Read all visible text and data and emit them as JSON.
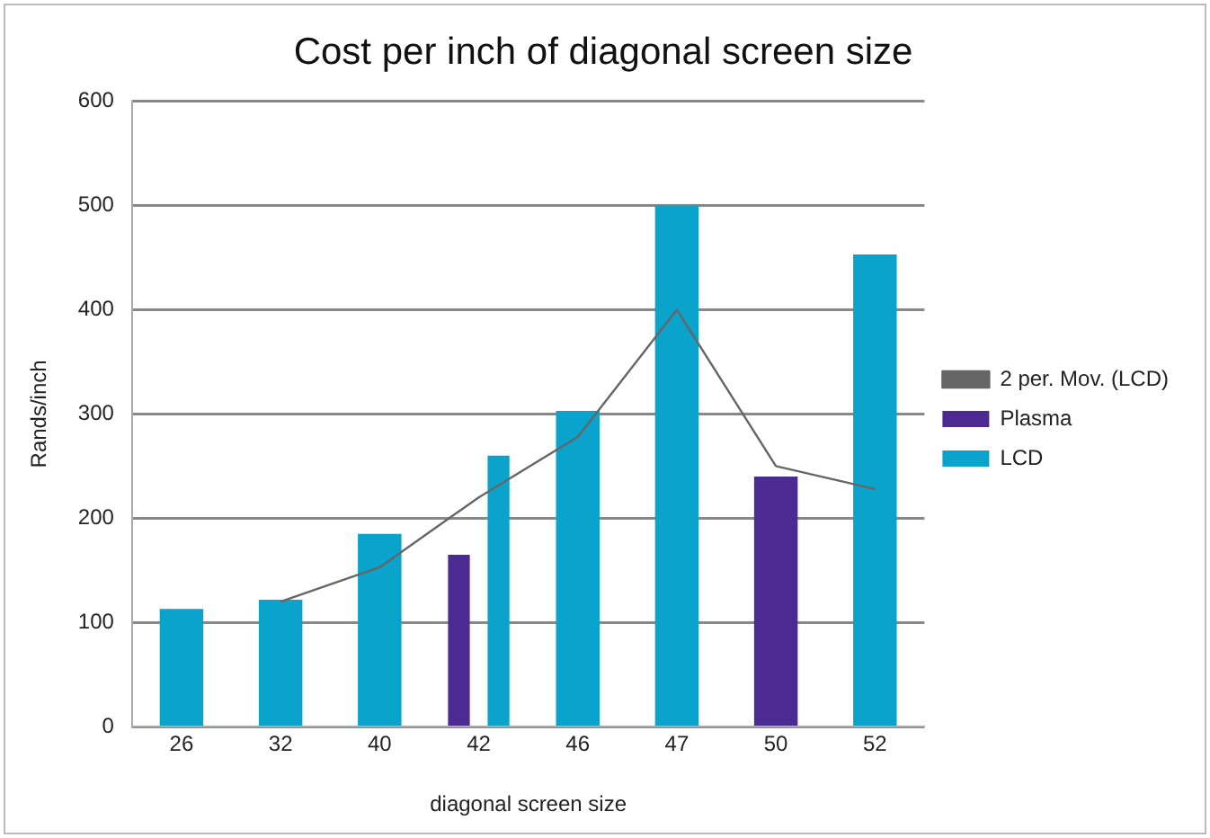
{
  "chart_data": {
    "type": "bar",
    "title": "Cost per inch of diagonal screen size",
    "xlabel": "diagonal screen size",
    "ylabel": "Rands/inch",
    "categories": [
      "26",
      "32",
      "40",
      "42",
      "46",
      "47",
      "50",
      "52"
    ],
    "series": [
      {
        "name": "Plasma",
        "color": "#4b2a91",
        "values": [
          null,
          null,
          null,
          165,
          null,
          null,
          240,
          null
        ]
      },
      {
        "name": "LCD",
        "color": "#0aa3cc",
        "values": [
          113,
          122,
          185,
          260,
          303,
          500,
          null,
          453
        ]
      },
      {
        "name": "2 per. Mov. (LCD)",
        "type": "line",
        "color": "#666666",
        "values": [
          null,
          120,
          153,
          220,
          278,
          400,
          250,
          228
        ]
      }
    ],
    "ylim": [
      0,
      600
    ],
    "yticks": [
      0,
      100,
      200,
      300,
      400,
      500,
      600
    ],
    "grid": "y",
    "legend": "right",
    "marker": "none"
  }
}
